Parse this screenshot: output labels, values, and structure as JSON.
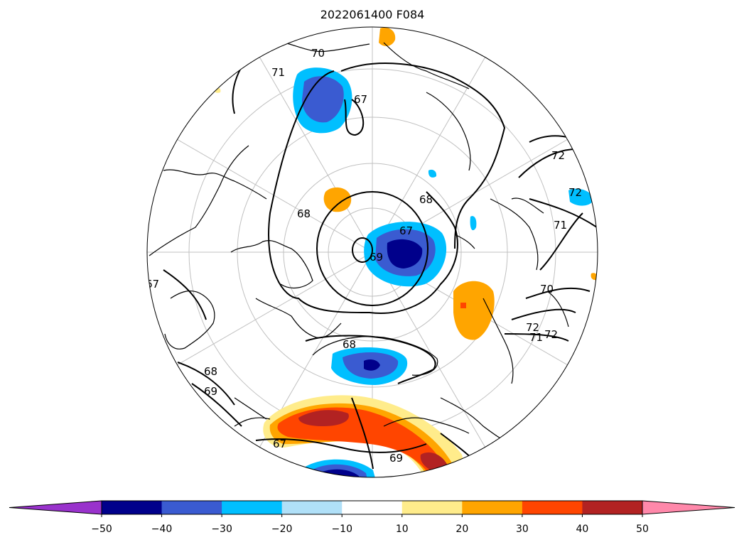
{
  "title": "2022061400 F084",
  "map": {
    "projection": "north-polar-stereographic",
    "graticule": true,
    "coastlines": true
  },
  "contour_labels": [
    "70",
    "71",
    "67",
    "72",
    "68",
    "68",
    "72",
    "71",
    "67",
    "69",
    "70",
    "71",
    "72",
    "68",
    "68",
    "69",
    "67",
    "69",
    "67",
    "72"
  ],
  "colorbar": {
    "extend": "both",
    "levels": [
      "−50",
      "−40",
      "−30",
      "−20",
      "−10",
      "10",
      "20",
      "30",
      "40",
      "50"
    ],
    "colors": [
      "#9932cc",
      "#00008b",
      "#3a5bd1",
      "#00bfff",
      "#b0e0f8",
      "#ffffff",
      "#ffec8b",
      "#ffa500",
      "#ff4500",
      "#b22222",
      "#ff88aa"
    ]
  }
}
